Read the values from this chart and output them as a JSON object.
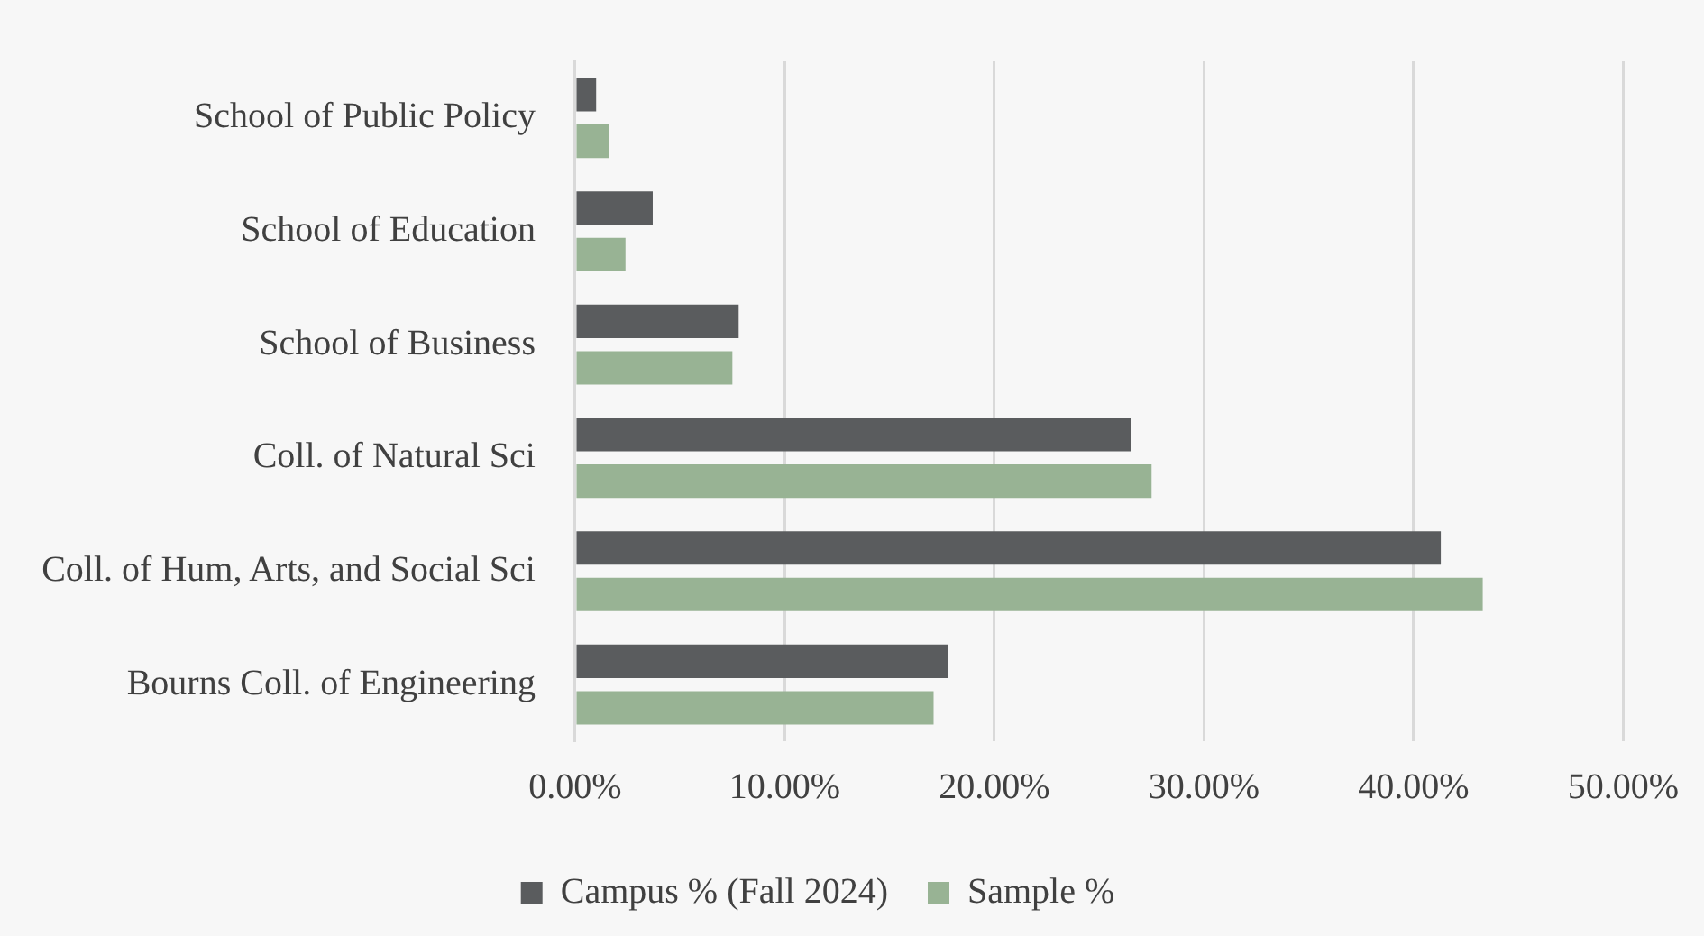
{
  "chart_data": {
    "type": "bar",
    "orientation": "horizontal",
    "categories": [
      "School of Public Policy",
      "School of Education",
      "School of Business",
      "Coll. of Natural Sci",
      "Coll. of Hum, Arts, and Social Sci",
      "Bourns Coll. of Engineering"
    ],
    "series": [
      {
        "name": "Campus % (Fall 2024)",
        "color": "#5a5c5e",
        "values": [
          1.0,
          3.7,
          7.8,
          26.5,
          41.3,
          17.8
        ]
      },
      {
        "name": "Sample %",
        "color": "#98b394",
        "values": [
          1.6,
          2.4,
          7.5,
          27.5,
          43.3,
          17.1
        ]
      }
    ],
    "xlim": [
      0,
      50
    ],
    "xticks": [
      {
        "value": 0,
        "label": "0.00%"
      },
      {
        "value": 10,
        "label": "10.00%"
      },
      {
        "value": 20,
        "label": "20.00%"
      },
      {
        "value": 30,
        "label": "30.00%"
      },
      {
        "value": 40,
        "label": "40.00%"
      },
      {
        "value": 50,
        "label": "50.00%"
      }
    ],
    "grid": "x",
    "legend": "bottom"
  }
}
